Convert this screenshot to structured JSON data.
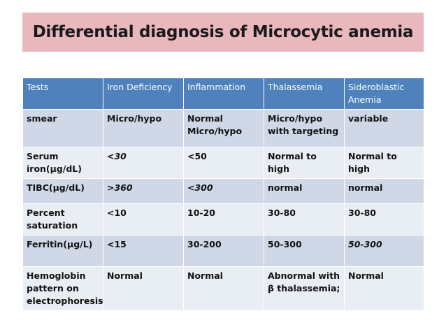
{
  "title": "Differential diagnosis of Microcytic anemia",
  "table": {
    "headers": [
      "Tests",
      "Iron Deficiency",
      "Inflammation",
      "Thalassemia",
      "Sideroblastic Anemia"
    ],
    "rows": [
      [
        "smear",
        "Micro/hypo",
        "Normal Micro/hypo",
        "Micro/hypo with targeting",
        "variable"
      ],
      [
        "Serum iron(µg/dL)",
        "<30",
        "<50",
        "Normal to high",
        "Normal to high"
      ],
      [
        "TIBC(µg/dL)",
        ">360",
        "<300",
        "normal",
        "normal"
      ],
      [
        "Percent saturation",
        "<10",
        "10-20",
        "30-80",
        "30-80"
      ],
      [
        "Ferritin(µg/L)",
        "<15",
        "30-200",
        "50-300",
        "50-300"
      ],
      [
        "Hemoglobin pattern on electrophoresis",
        "Normal",
        "Normal",
        "Abnormal with β thalassemia;",
        "Normal"
      ]
    ]
  },
  "colors": {
    "title_background": "#e9b8bd",
    "header_background": "#4f81bd",
    "row_dark": "#d0d8e8",
    "row_light": "#e9edf4"
  }
}
